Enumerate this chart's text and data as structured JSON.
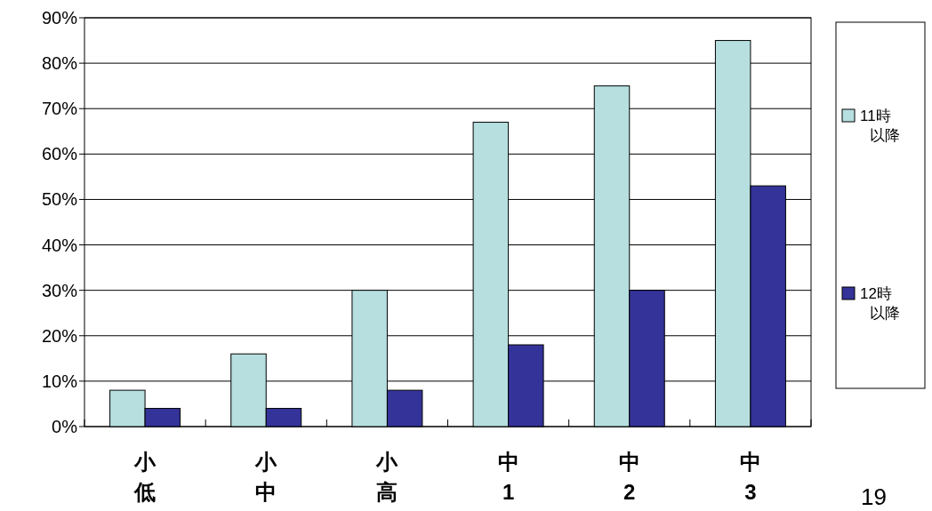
{
  "chart_data": {
    "type": "bar",
    "categories": [
      "小低",
      "小中",
      "小高",
      "中1",
      "中2",
      "中3"
    ],
    "series": [
      {
        "name": "11時以降",
        "color": "#b7dfe0",
        "values": [
          8,
          16,
          30,
          67,
          75,
          85
        ]
      },
      {
        "name": "12時以降",
        "color": "#333399",
        "values": [
          4,
          4,
          8,
          18,
          30,
          53
        ]
      }
    ],
    "ylim": [
      0,
      90
    ],
    "yticks": [
      {
        "value": 0,
        "label": "0%"
      },
      {
        "value": 10,
        "label": "10%"
      },
      {
        "value": 20,
        "label": "20%"
      },
      {
        "value": 30,
        "label": "30%"
      },
      {
        "value": 40,
        "label": "40%"
      },
      {
        "value": 50,
        "label": "50%"
      },
      {
        "value": 60,
        "label": "60%"
      },
      {
        "value": 70,
        "label": "70%"
      },
      {
        "value": 80,
        "label": "80%"
      },
      {
        "value": 90,
        "label": "90%"
      }
    ],
    "grid": "y",
    "legend": "right",
    "annotations": [
      "19"
    ]
  }
}
